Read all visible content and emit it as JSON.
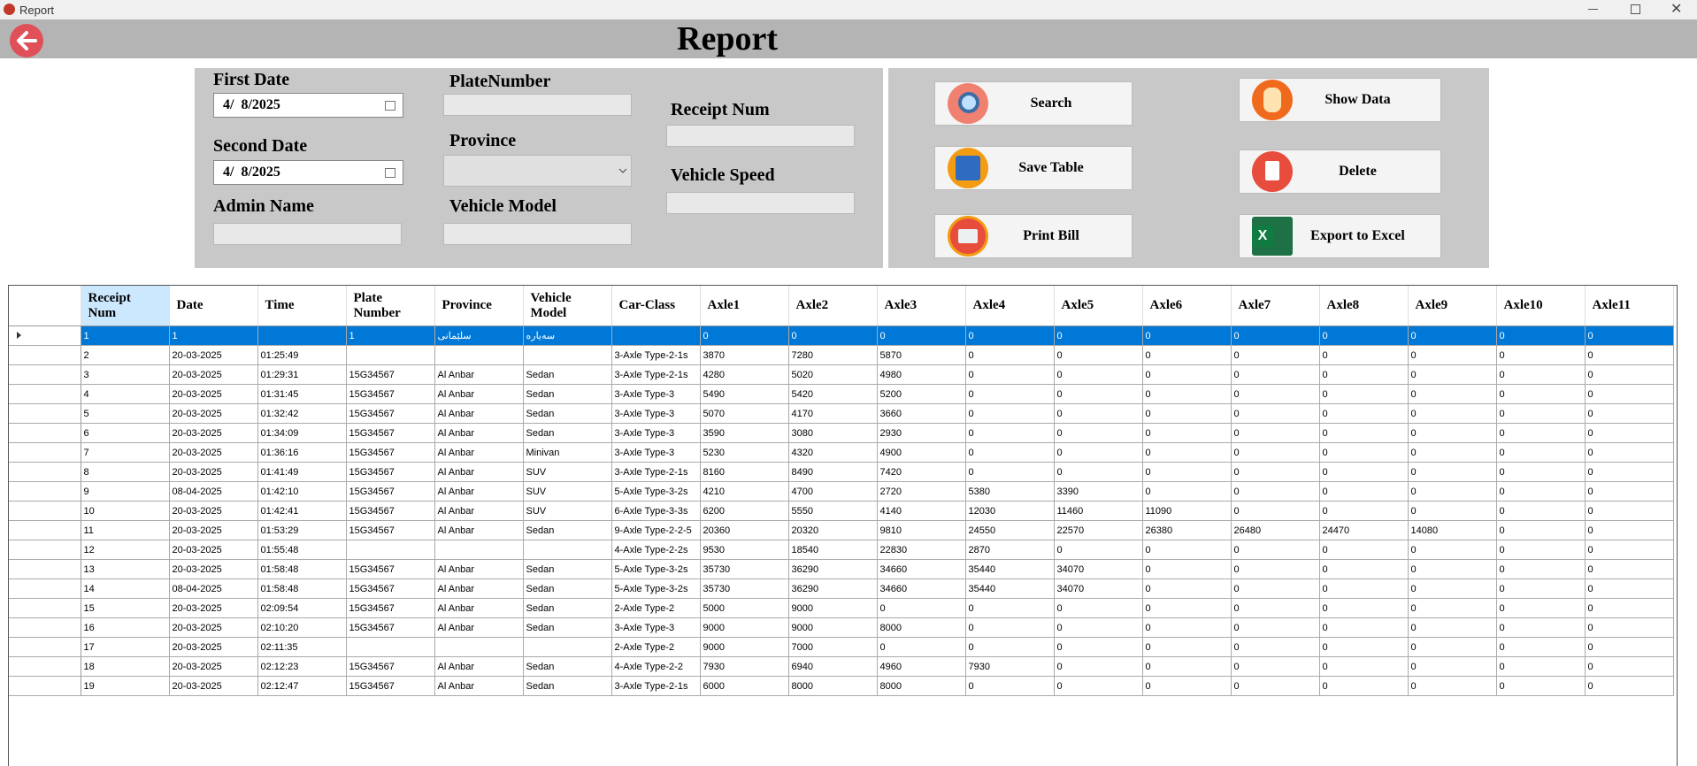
{
  "window": {
    "title": "Report"
  },
  "header": {
    "title": "Report"
  },
  "filters": {
    "first_date": {
      "label": "First Date",
      "value": "4/  8/2025"
    },
    "second_date": {
      "label": "Second Date",
      "value": "4/  8/2025"
    },
    "admin_name": {
      "label": "Admin Name"
    },
    "plate_number": {
      "label": "PlateNumber"
    },
    "province": {
      "label": "Province"
    },
    "vehicle_model": {
      "label": "Vehicle Model"
    },
    "receipt_num": {
      "label": "Receipt Num"
    },
    "vehicle_speed": {
      "label": "Vehicle Speed"
    }
  },
  "buttons": {
    "search": "Search",
    "save_table": "Save Table",
    "print_bill": "Print Bill",
    "show_data": "Show Data",
    "delete": "Delete",
    "export": "Export to Excel"
  },
  "table": {
    "columns": [
      "Receipt Num",
      "Date",
      "Time",
      "Plate Number",
      "Province",
      "Vehicle Model",
      "Car-Class",
      "Axle1",
      "Axle2",
      "Axle3",
      "Axle4",
      "Axle5",
      "Axle6",
      "Axle7",
      "Axle8",
      "Axle9",
      "Axle10",
      "Axle11"
    ],
    "rows": [
      [
        "1",
        "1",
        null,
        "1",
        "سلێمانی",
        "سەیارە",
        null,
        "0",
        "0",
        "0",
        "0",
        "0",
        "0",
        "0",
        "0",
        "0",
        "0",
        "0"
      ],
      [
        "2",
        "20-03-2025",
        "01:25:49",
        null,
        null,
        null,
        "3-Axle Type-2-1s",
        "3870",
        "7280",
        "5870",
        "0",
        "0",
        "0",
        "0",
        "0",
        "0",
        "0",
        "0"
      ],
      [
        "3",
        "20-03-2025",
        "01:29:31",
        "15G34567",
        "Al Anbar",
        "Sedan",
        "3-Axle Type-2-1s",
        "4280",
        "5020",
        "4980",
        "0",
        "0",
        "0",
        "0",
        "0",
        "0",
        "0",
        "0"
      ],
      [
        "4",
        "20-03-2025",
        "01:31:45",
        "15G34567",
        "Al Anbar",
        "Sedan",
        "3-Axle Type-3",
        "5490",
        "5420",
        "5200",
        "0",
        "0",
        "0",
        "0",
        "0",
        "0",
        "0",
        "0"
      ],
      [
        "5",
        "20-03-2025",
        "01:32:42",
        "15G34567",
        "Al Anbar",
        "Sedan",
        "3-Axle Type-3",
        "5070",
        "4170",
        "3660",
        "0",
        "0",
        "0",
        "0",
        "0",
        "0",
        "0",
        "0"
      ],
      [
        "6",
        "20-03-2025",
        "01:34:09",
        "15G34567",
        "Al Anbar",
        "Sedan",
        "3-Axle Type-3",
        "3590",
        "3080",
        "2930",
        "0",
        "0",
        "0",
        "0",
        "0",
        "0",
        "0",
        "0"
      ],
      [
        "7",
        "20-03-2025",
        "01:36:16",
        "15G34567",
        "Al Anbar",
        "Minivan",
        "3-Axle Type-3",
        "5230",
        "4320",
        "4900",
        "0",
        "0",
        "0",
        "0",
        "0",
        "0",
        "0",
        "0"
      ],
      [
        "8",
        "20-03-2025",
        "01:41:49",
        "15G34567",
        "Al Anbar",
        "SUV",
        "3-Axle Type-2-1s",
        "8160",
        "8490",
        "7420",
        "0",
        "0",
        "0",
        "0",
        "0",
        "0",
        "0",
        "0"
      ],
      [
        "9",
        "08-04-2025",
        "01:42:10",
        "15G34567",
        "Al Anbar",
        "SUV",
        "5-Axle Type-3-2s",
        "4210",
        "4700",
        "2720",
        "5380",
        "3390",
        "0",
        "0",
        "0",
        "0",
        "0",
        "0"
      ],
      [
        "10",
        "20-03-2025",
        "01:42:41",
        "15G34567",
        "Al Anbar",
        "SUV",
        "6-Axle Type-3-3s",
        "6200",
        "5550",
        "4140",
        "12030",
        "11460",
        "11090",
        "0",
        "0",
        "0",
        "0",
        "0"
      ],
      [
        "11",
        "20-03-2025",
        "01:53:29",
        "15G34567",
        "Al Anbar",
        "Sedan",
        "9-Axle Type-2-2-5",
        "20360",
        "20320",
        "9810",
        "24550",
        "22570",
        "26380",
        "26480",
        "24470",
        "14080",
        "0",
        "0"
      ],
      [
        "12",
        "20-03-2025",
        "01:55:48",
        null,
        null,
        null,
        "4-Axle Type-2-2s",
        "9530",
        "18540",
        "22830",
        "2870",
        "0",
        "0",
        "0",
        "0",
        "0",
        "0",
        "0"
      ],
      [
        "13",
        "20-03-2025",
        "01:58:48",
        "15G34567",
        "Al Anbar",
        "Sedan",
        "5-Axle Type-3-2s",
        "35730",
        "36290",
        "34660",
        "35440",
        "34070",
        "0",
        "0",
        "0",
        "0",
        "0",
        "0"
      ],
      [
        "14",
        "08-04-2025",
        "01:58:48",
        "15G34567",
        "Al Anbar",
        "Sedan",
        "5-Axle Type-3-2s",
        "35730",
        "36290",
        "34660",
        "35440",
        "34070",
        "0",
        "0",
        "0",
        "0",
        "0",
        "0"
      ],
      [
        "15",
        "20-03-2025",
        "02:09:54",
        "15G34567",
        "Al Anbar",
        "Sedan",
        "2-Axle Type-2",
        "5000",
        "9000",
        "0",
        "0",
        "0",
        "0",
        "0",
        "0",
        "0",
        "0",
        "0"
      ],
      [
        "16",
        "20-03-2025",
        "02:10:20",
        "15G34567",
        "Al Anbar",
        "Sedan",
        "3-Axle Type-3",
        "9000",
        "9000",
        "8000",
        "0",
        "0",
        "0",
        "0",
        "0",
        "0",
        "0",
        "0"
      ],
      [
        "17",
        "20-03-2025",
        "02:11:35",
        null,
        null,
        null,
        "2-Axle Type-2",
        "9000",
        "7000",
        "0",
        "0",
        "0",
        "0",
        "0",
        "0",
        "0",
        "0",
        "0"
      ],
      [
        "18",
        "20-03-2025",
        "02:12:23",
        "15G34567",
        "Al Anbar",
        "Sedan",
        "4-Axle Type-2-2",
        "7930",
        "6940",
        "4960",
        "7930",
        "0",
        "0",
        "0",
        "0",
        "0",
        "0",
        "0"
      ],
      [
        "19",
        "20-03-2025",
        "02:12:47",
        "15G34567",
        "Al Anbar",
        "Sedan",
        "3-Axle Type-2-1s",
        "6000",
        "8000",
        "8000",
        "0",
        "0",
        "0",
        "0",
        "0",
        "0",
        "0",
        "0"
      ]
    ]
  }
}
